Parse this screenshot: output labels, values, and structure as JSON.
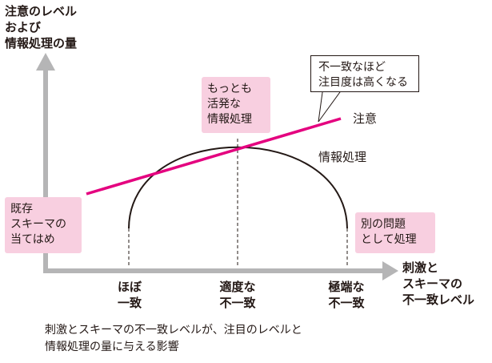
{
  "y_axis_label": "注意のレベル\nおよび\n情報処理の量",
  "x_axis_label": "刺激と\nスキーマの\n不一致レベル",
  "x_ticks": [
    "ほぼ\n一致",
    "適度な\n不一致",
    "極端な\n不一致"
  ],
  "curve_labels": {
    "attention": "注意",
    "processing": "情報処理"
  },
  "boxes": {
    "peak": "もっとも\n活発な\n情報処理",
    "left": "既存\nスキーマの\n当てはめ",
    "right": "別の問題\nとして処理"
  },
  "callout": "不一致なほど\n注目度は高くなる",
  "caption": "刺激とスキーマの不一致レベルが、注目のレベルと\n情報処理の量に与える影響",
  "colors": {
    "axis": "#b5b5b6",
    "attention_line": "#e4007f",
    "box_fill": "#f8cfe0",
    "text": "#231815"
  }
}
